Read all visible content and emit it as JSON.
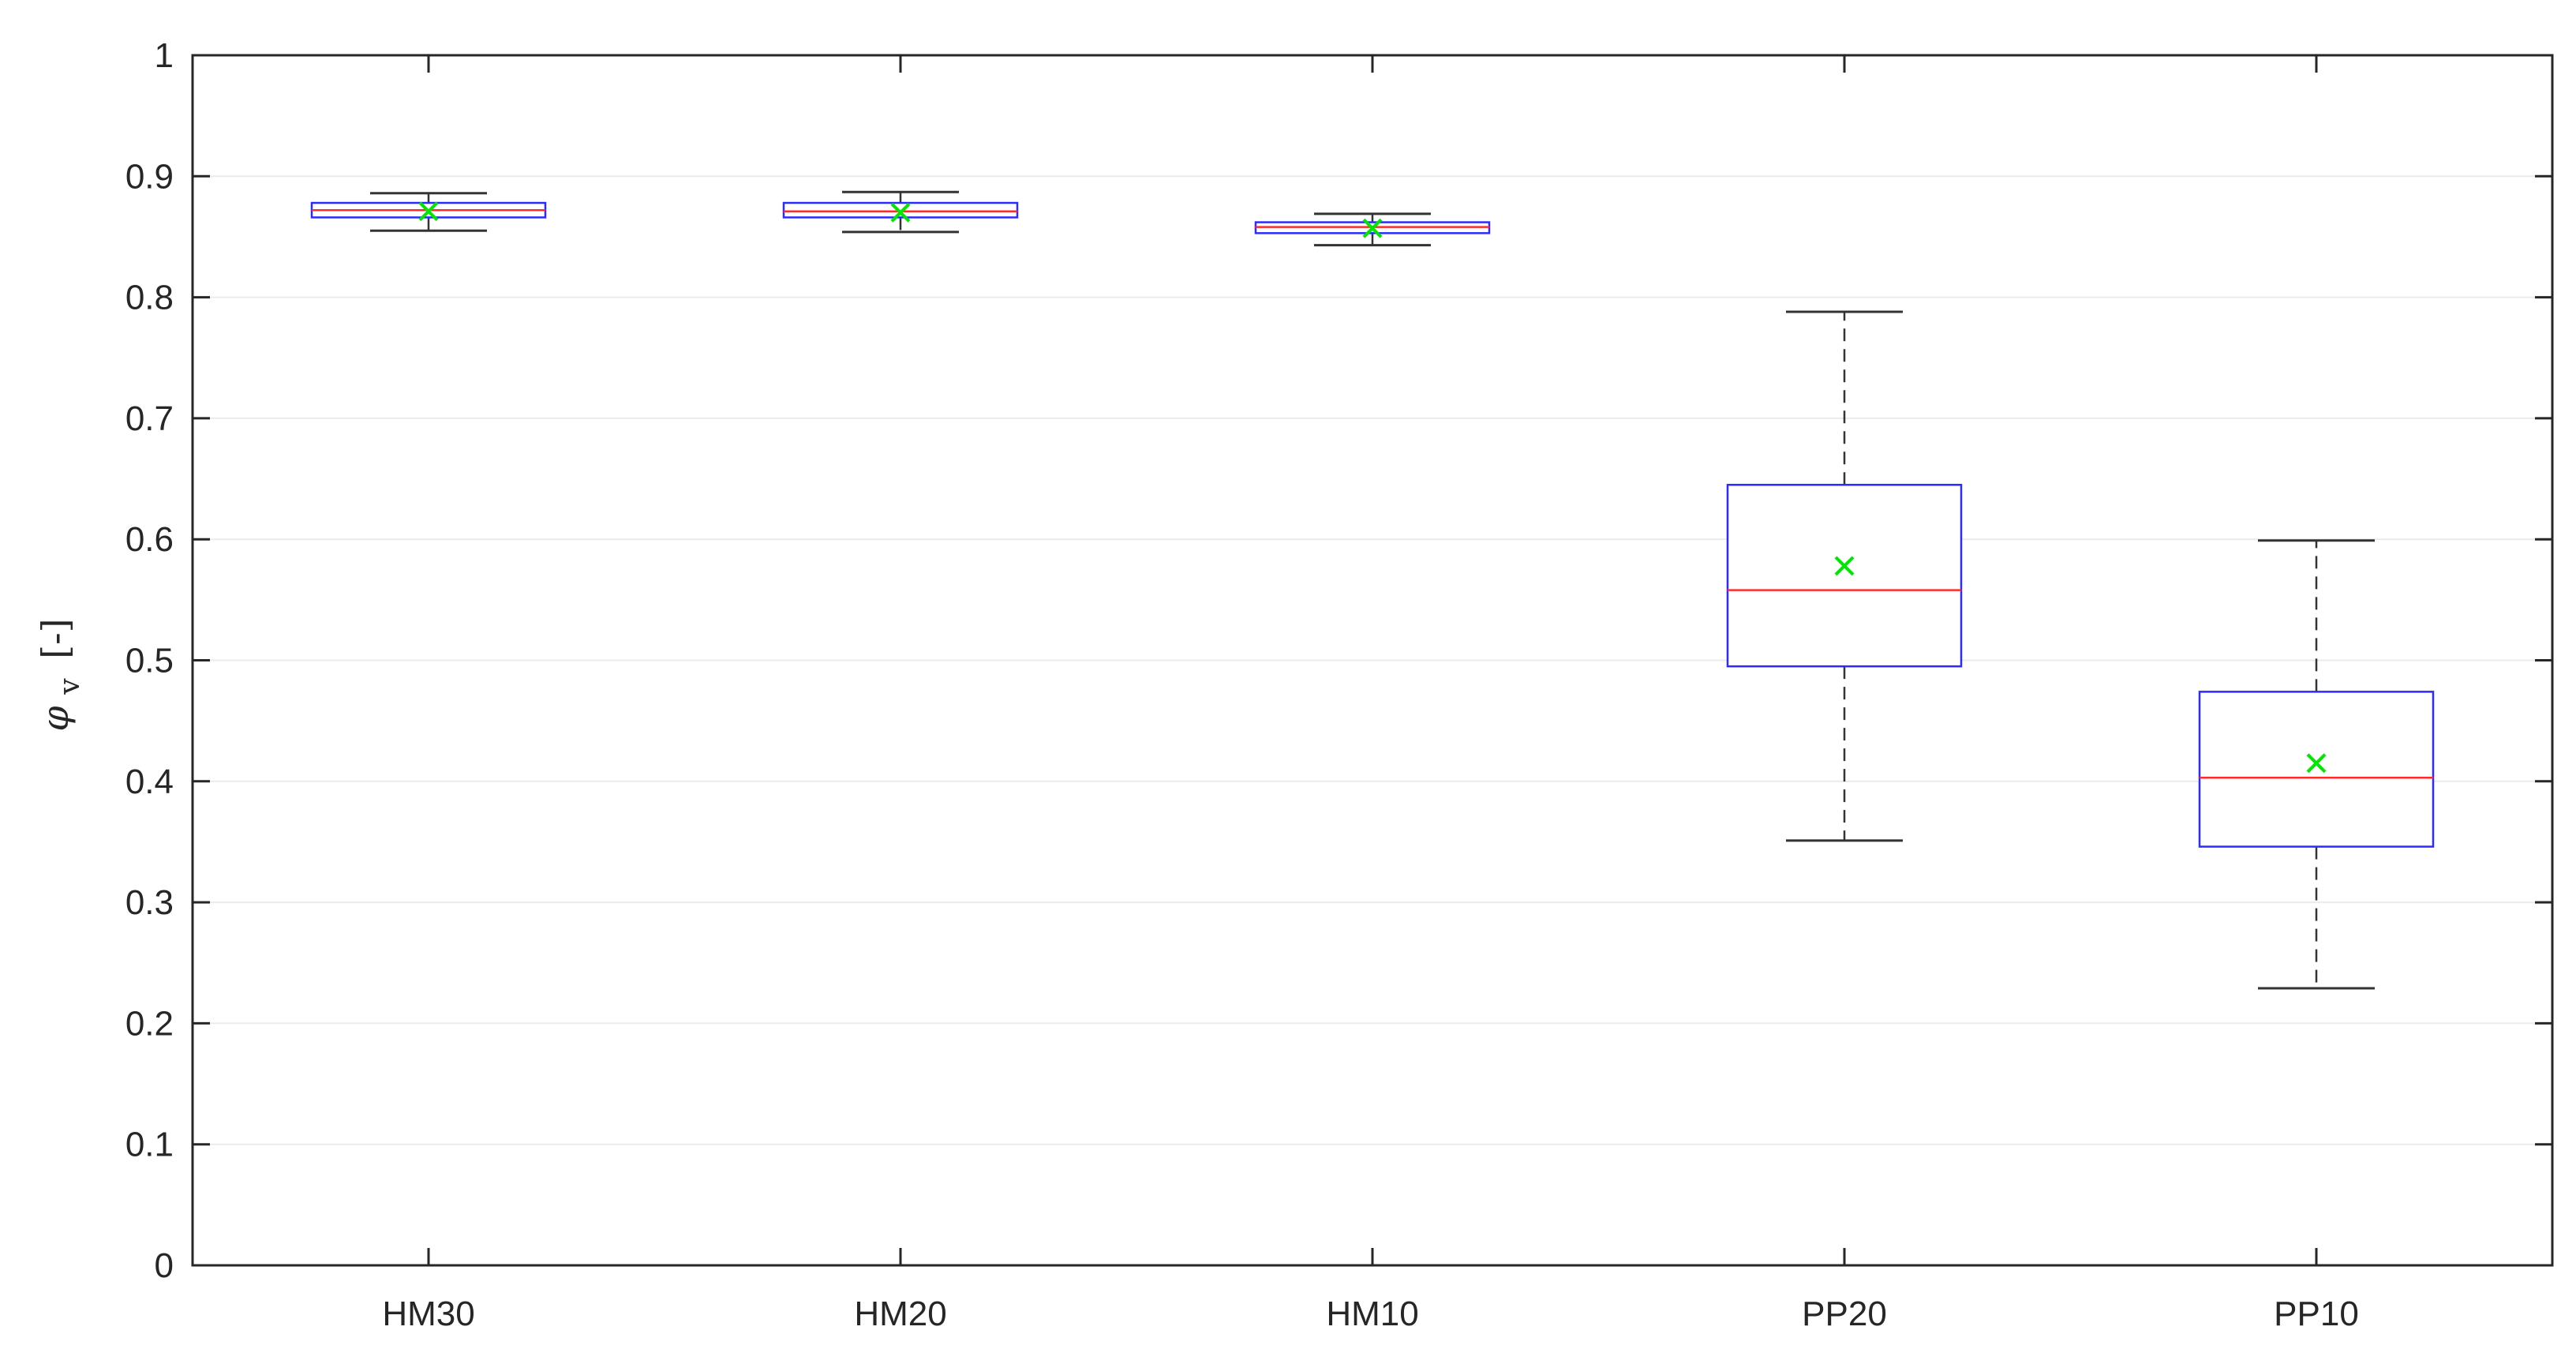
{
  "chart_data": {
    "type": "boxplot",
    "title": "",
    "xlabel": "",
    "ylabel": "[-]",
    "ylabel_symbol": "φ",
    "ylabel_subscript": "v",
    "ylim": [
      0,
      1
    ],
    "yticks": [
      "0",
      "0.1",
      "0.2",
      "0.3",
      "0.4",
      "0.5",
      "0.6",
      "0.7",
      "0.8",
      "0.9",
      "1"
    ],
    "grid": true,
    "legend": "none",
    "categories": [
      "HM30",
      "HM20",
      "HM10",
      "PP20",
      "PP10"
    ],
    "boxes": [
      {
        "category": "HM30",
        "whisker_low": 0.855,
        "q1": 0.866,
        "median": 0.872,
        "q3": 0.878,
        "whisker_high": 0.886,
        "mean": 0.871
      },
      {
        "category": "HM20",
        "whisker_low": 0.854,
        "q1": 0.866,
        "median": 0.871,
        "q3": 0.878,
        "whisker_high": 0.887,
        "mean": 0.87
      },
      {
        "category": "HM10",
        "whisker_low": 0.843,
        "q1": 0.853,
        "median": 0.858,
        "q3": 0.862,
        "whisker_high": 0.869,
        "mean": 0.857
      },
      {
        "category": "PP20",
        "whisker_low": 0.351,
        "q1": 0.495,
        "median": 0.558,
        "q3": 0.645,
        "whisker_high": 0.788,
        "mean": 0.578
      },
      {
        "category": "PP10",
        "whisker_low": 0.229,
        "q1": 0.346,
        "median": 0.403,
        "q3": 0.474,
        "whisker_high": 0.599,
        "mean": 0.415
      }
    ],
    "colors": {
      "box": "#2b2bff",
      "median": "#ff2b2b",
      "whisker": "#333333",
      "mean_marker": "#00e600",
      "grid": "#ebebeb",
      "axis": "#262626"
    }
  }
}
